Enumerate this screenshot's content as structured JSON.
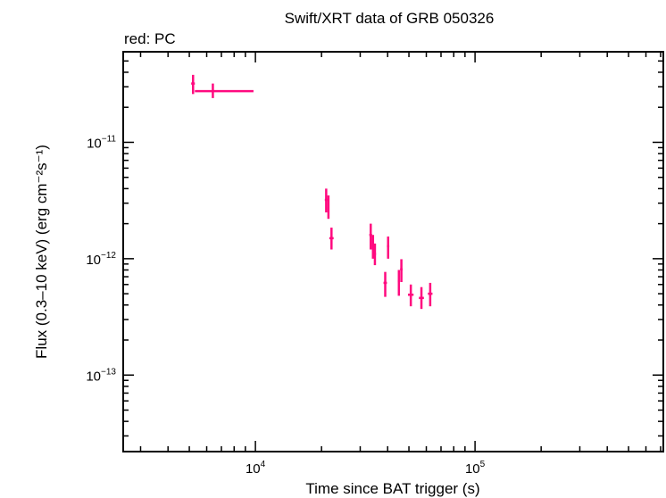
{
  "chart_data": {
    "type": "scatter",
    "title": "Swift/XRT data of GRB 050326",
    "subtitle": "red: PC",
    "xlabel": "Time since BAT trigger (s)",
    "ylabel": "Flux (0.3–10 keV) (erg cm⁻²s⁻¹)",
    "xscale": "log",
    "yscale": "log",
    "xlim": [
      2500,
      720000
    ],
    "ylim": [
      2.2e-14,
      6e-11
    ],
    "x_ticks": [
      {
        "value": 10000,
        "base": "10",
        "exp": "4"
      },
      {
        "value": 100000,
        "base": "10",
        "exp": "5"
      }
    ],
    "y_ticks": [
      {
        "value": 1e-11,
        "base": "10",
        "exp": "−11"
      },
      {
        "value": 1e-12,
        "base": "10",
        "exp": "−12"
      },
      {
        "value": 1e-13,
        "base": "10",
        "exp": "−13"
      }
    ],
    "grid": false,
    "legend": "none",
    "series": [
      {
        "name": "PC",
        "color": "#ff0a7f",
        "points": [
          {
            "x": 5200,
            "xlo": 5100,
            "xhi": 5300,
            "y": 3.2e-11,
            "ylo": 2.6e-11,
            "yhi": 3.8e-11
          },
          {
            "x": 6400,
            "xlo": 5300,
            "xhi": 9800,
            "y": 2.75e-11,
            "ylo": 2.4e-11,
            "yhi": 3.2e-11
          },
          {
            "x": 21000,
            "xlo": 20700,
            "xhi": 21300,
            "y": 3.2e-12,
            "ylo": 2.5e-12,
            "yhi": 4e-12
          },
          {
            "x": 21500,
            "xlo": 21300,
            "xhi": 21700,
            "y": 2.7e-12,
            "ylo": 2.2e-12,
            "yhi": 3.5e-12
          },
          {
            "x": 22200,
            "xlo": 21700,
            "xhi": 22700,
            "y": 1.5e-12,
            "ylo": 1.2e-12,
            "yhi": 1.85e-12
          },
          {
            "x": 33500,
            "xlo": 33000,
            "xhi": 34000,
            "y": 1.6e-12,
            "ylo": 1.2e-12,
            "yhi": 2e-12
          },
          {
            "x": 34300,
            "xlo": 34000,
            "xhi": 34600,
            "y": 1.3e-12,
            "ylo": 1e-12,
            "yhi": 1.6e-12
          },
          {
            "x": 35000,
            "xlo": 34600,
            "xhi": 35400,
            "y": 1.1e-12,
            "ylo": 8.8e-13,
            "yhi": 1.35e-12
          },
          {
            "x": 39000,
            "xlo": 38300,
            "xhi": 39700,
            "y": 6.2e-13,
            "ylo": 4.7e-13,
            "yhi": 7.7e-13
          },
          {
            "x": 40200,
            "xlo": 39700,
            "xhi": 40700,
            "y": 1.28e-12,
            "ylo": 1e-12,
            "yhi": 1.55e-12
          },
          {
            "x": 45000,
            "xlo": 44500,
            "xhi": 45500,
            "y": 6.4e-13,
            "ylo": 4.8e-13,
            "yhi": 8e-13
          },
          {
            "x": 46200,
            "xlo": 45600,
            "xhi": 46800,
            "y": 8.1e-13,
            "ylo": 6.3e-13,
            "yhi": 9.9e-13
          },
          {
            "x": 51000,
            "xlo": 49500,
            "xhi": 52500,
            "y": 4.9e-13,
            "ylo": 3.9e-13,
            "yhi": 6e-13
          },
          {
            "x": 57000,
            "xlo": 55500,
            "xhi": 58500,
            "y": 4.6e-13,
            "ylo": 3.7e-13,
            "yhi": 5.7e-13
          },
          {
            "x": 62500,
            "xlo": 61000,
            "xhi": 64000,
            "y": 5e-13,
            "ylo": 3.9e-13,
            "yhi": 6.2e-13
          }
        ]
      }
    ]
  }
}
